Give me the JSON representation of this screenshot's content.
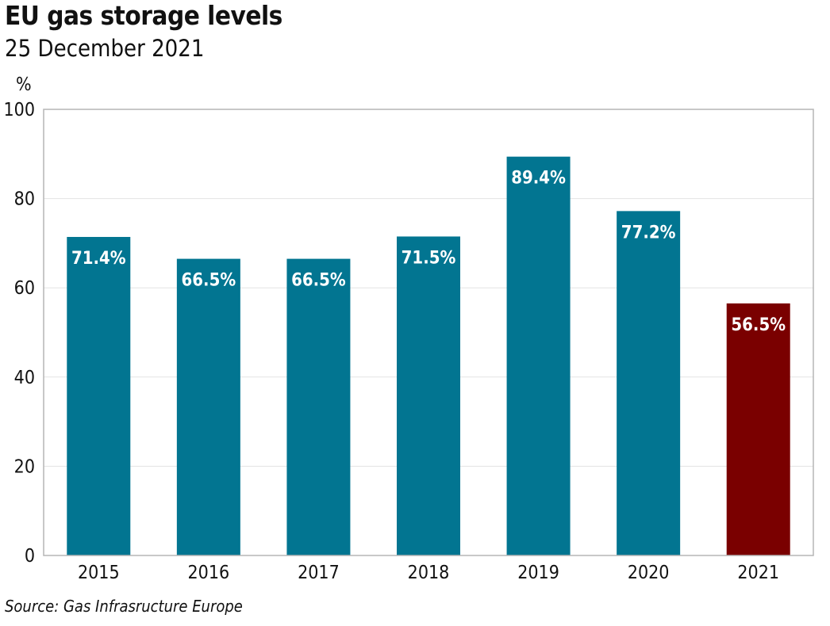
{
  "colors": {
    "bar_default": "#027591",
    "bar_highlight": "#7a0000",
    "grid": "#e3e3e3",
    "frame": "#b5b5b5"
  },
  "chart_data": {
    "type": "bar",
    "title": "EU gas storage levels",
    "subtitle": "25 December 2021",
    "ylabel": "%",
    "categories": [
      "2015",
      "2016",
      "2017",
      "2018",
      "2019",
      "2020",
      "2021"
    ],
    "values": [
      71.4,
      66.5,
      66.5,
      71.5,
      89.4,
      77.2,
      56.5
    ],
    "data_labels": [
      "71.4%",
      "66.5%",
      "66.5%",
      "71.5%",
      "89.4%",
      "77.2%",
      "56.5%"
    ],
    "highlight_index": 6,
    "ylim": [
      0,
      100
    ],
    "yticks": [
      0,
      20,
      40,
      60,
      80,
      100
    ],
    "ytick_labels": [
      "0",
      "20",
      "40",
      "60",
      "80",
      "100"
    ],
    "grid": true,
    "source": "Source: Gas Infrasructure Europe"
  }
}
